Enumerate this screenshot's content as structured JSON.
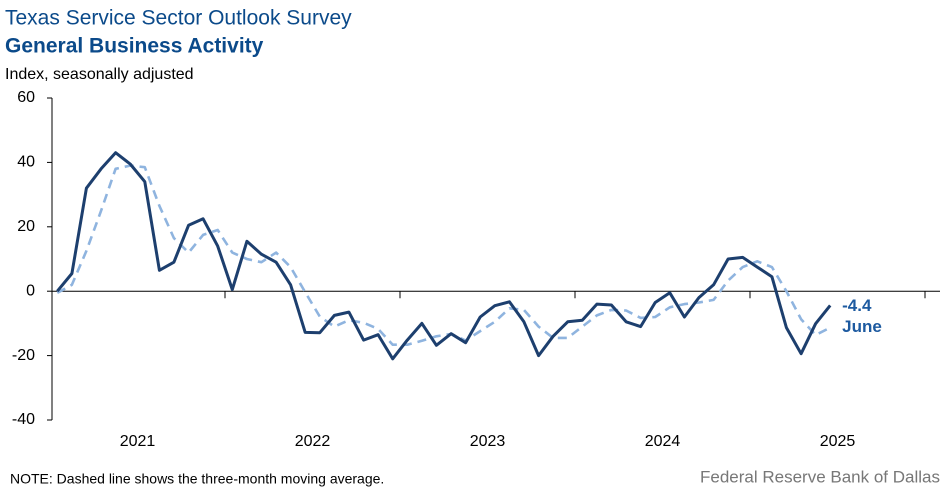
{
  "chart_data": {
    "type": "line",
    "title": "Texas Service Sector Outlook Survey",
    "subtitle": "General Business Activity",
    "y_label": "Index, seasonally adjusted",
    "note": "NOTE: Dashed line shows the three-month  moving average.",
    "source": "Federal Reserve Bank of Dallas",
    "x": [
      2021.042,
      2021.125,
      2021.208,
      2021.292,
      2021.375,
      2021.458,
      2021.542,
      2021.625,
      2021.708,
      2021.792,
      2021.875,
      2021.958,
      2022.042,
      2022.125,
      2022.208,
      2022.292,
      2022.375,
      2022.458,
      2022.542,
      2022.625,
      2022.708,
      2022.792,
      2022.875,
      2022.958,
      2023.042,
      2023.125,
      2023.208,
      2023.292,
      2023.375,
      2023.458,
      2023.542,
      2023.625,
      2023.708,
      2023.792,
      2023.875,
      2023.958,
      2024.042,
      2024.125,
      2024.208,
      2024.292,
      2024.375,
      2024.458,
      2024.542,
      2024.625,
      2024.708,
      2024.792,
      2024.875,
      2024.958,
      2025.042,
      2025.125,
      2025.208,
      2025.292,
      2025.375,
      2025.458
    ],
    "series": [
      {
        "name": "General Business Activity",
        "color": "#1d3f6e",
        "dashed": false,
        "values": [
          0,
          5.5,
          32,
          38,
          43,
          39.5,
          34,
          6.5,
          9,
          20.5,
          22.5,
          14,
          0.5,
          15.5,
          11.5,
          9,
          2,
          -12.8,
          -12.9,
          -7.5,
          -6.5,
          -15.2,
          -13.5,
          -21,
          -15.2,
          -10,
          -16.8,
          -13.2,
          -16,
          -8,
          -4.5,
          -3.3,
          -9.5,
          -20,
          -14,
          -9.5,
          -9,
          -4,
          -4.3,
          -9.5,
          -11,
          -3.5,
          -0.5,
          -8,
          -2,
          2,
          10,
          10.5,
          7.5,
          4.5,
          -11.3,
          -19.4,
          -10.1,
          -4.4
        ]
      },
      {
        "name": "Three-month moving average",
        "color": "#8fb4df",
        "dashed": true,
        "values": [
          -0.5,
          2,
          12.5,
          25,
          38,
          39,
          38.5,
          26.5,
          16.5,
          12,
          17.5,
          19,
          12,
          10,
          9,
          12,
          7.5,
          -0.3,
          -7.9,
          -11,
          -9,
          -9.8,
          -11.7,
          -16.6,
          -16.6,
          -15.4,
          -14,
          -13.3,
          -15.3,
          -12.4,
          -9.5,
          -5.3,
          -5.8,
          -11,
          -14.5,
          -14.5,
          -11,
          -7.5,
          -5.8,
          -6,
          -8.3,
          -8,
          -5,
          -4,
          -3.5,
          -2.7,
          3.3,
          7.5,
          9.3,
          7.5,
          0,
          -8.7,
          -13.6,
          -11.3
        ]
      }
    ],
    "annotations": [
      "-4.4",
      "June"
    ],
    "annotation_color": "#1d5aa0",
    "xlim": [
      2021,
      2026
    ],
    "xticks": [
      2021,
      2022,
      2023,
      2024,
      2025
    ],
    "ylim": [
      -40,
      60
    ],
    "yticks": [
      60,
      40,
      20,
      0,
      -20,
      -40
    ],
    "grid": false
  }
}
